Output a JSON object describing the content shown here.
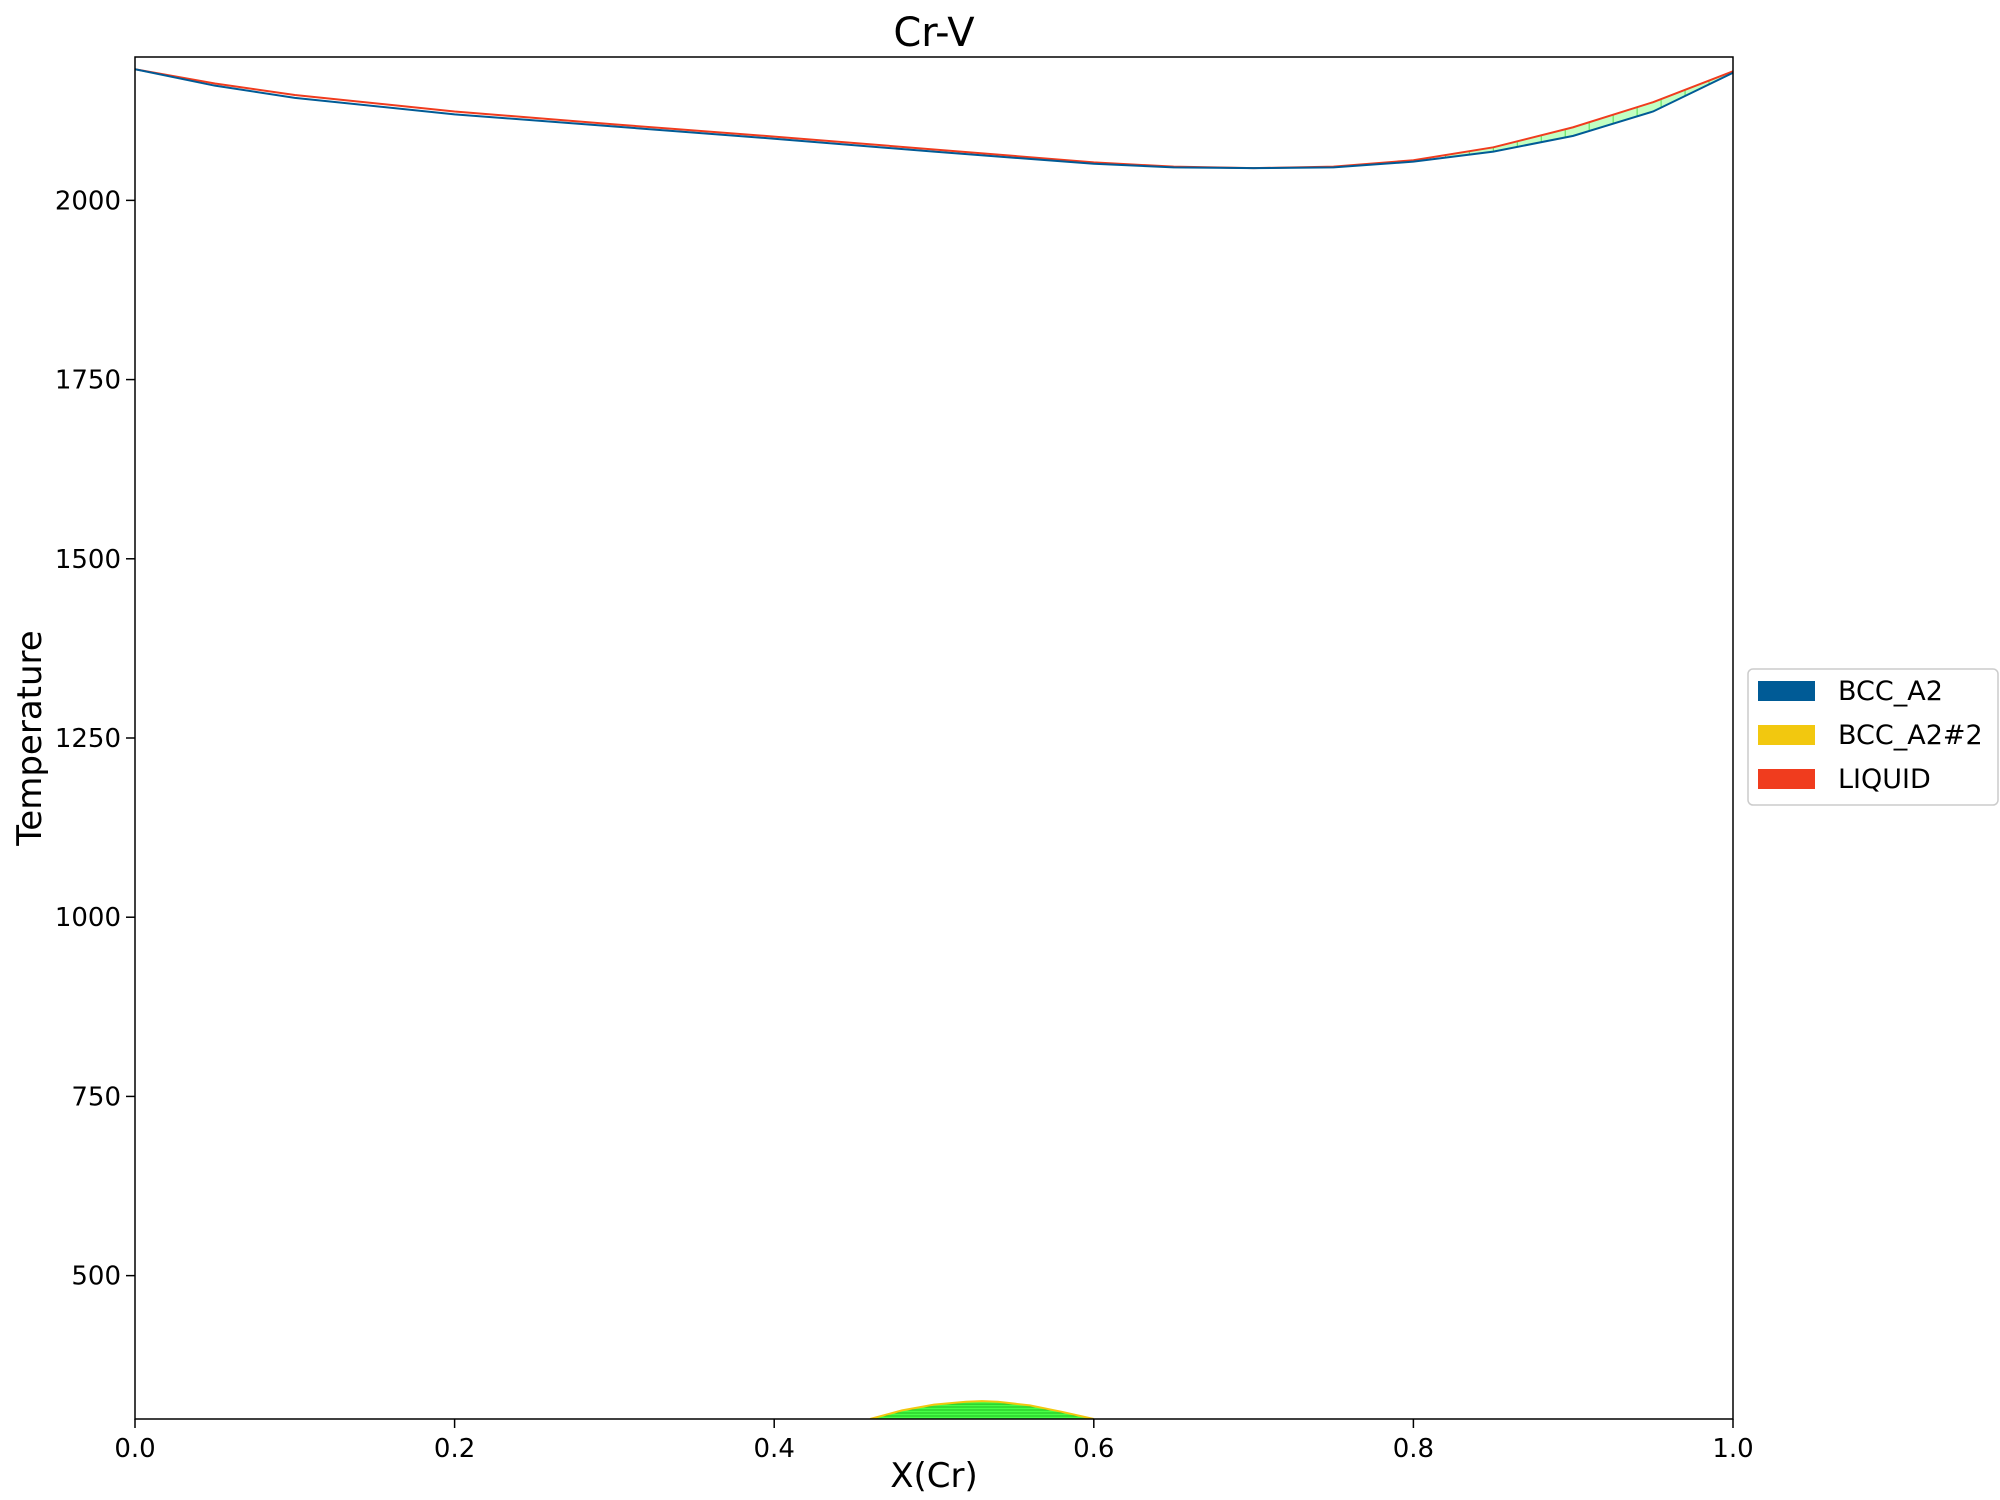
{
  "chart_data": {
    "type": "line",
    "title": "Cr-V",
    "xlabel": "X(Cr)",
    "ylabel": "Temperature",
    "xlim": [
      0.0,
      1.0
    ],
    "ylim": [
      300,
      2200
    ],
    "xticks": [
      0.0,
      0.2,
      0.4,
      0.6,
      0.8,
      1.0
    ],
    "xtick_labels": [
      "0.0",
      "0.2",
      "0.4",
      "0.6",
      "0.8",
      "1.0"
    ],
    "yticks": [
      500,
      750,
      1000,
      1250,
      1500,
      1750,
      2000
    ],
    "ytick_labels": [
      "500",
      "750",
      "1000",
      "1250",
      "1500",
      "1750",
      "2000"
    ],
    "grid": false,
    "legend_position": "right",
    "legend": [
      {
        "label": "BCC_A2",
        "color": "#005b96"
      },
      {
        "label": "BCC_A2#2",
        "color": "#f2c80f"
      },
      {
        "label": "LIQUID",
        "color": "#f03c1e"
      }
    ],
    "series": [
      {
        "name": "LIQUID",
        "color": "#f03c1e",
        "x": [
          0.0,
          0.05,
          0.1,
          0.2,
          0.3,
          0.4,
          0.5,
          0.6,
          0.65,
          0.7,
          0.75,
          0.8,
          0.85,
          0.9,
          0.95,
          1.0
        ],
        "y": [
          2183,
          2163,
          2147,
          2124,
          2106,
          2089,
          2071,
          2053,
          2047,
          2045,
          2047,
          2056,
          2074,
          2102,
          2137,
          2180
        ]
      },
      {
        "name": "BCC_A2",
        "color": "#005b96",
        "x": [
          0.0,
          0.05,
          0.1,
          0.2,
          0.3,
          0.4,
          0.5,
          0.6,
          0.65,
          0.7,
          0.75,
          0.8,
          0.85,
          0.9,
          0.95,
          1.0
        ],
        "y": [
          2183,
          2160,
          2143,
          2120,
          2103,
          2086,
          2068,
          2051,
          2046,
          2045,
          2046,
          2054,
          2068,
          2090,
          2124,
          2178
        ]
      },
      {
        "name": "BCC_A2#2",
        "color": "#f2c80f",
        "x": [
          0.46,
          0.48,
          0.5,
          0.52,
          0.53,
          0.54,
          0.56,
          0.58,
          0.6
        ],
        "y": [
          300,
          312,
          320,
          324,
          325,
          324,
          319,
          310,
          300
        ]
      }
    ],
    "tie_line_regions": [
      {
        "name": "miscibility-gap",
        "color": "#33ff33",
        "x_range": [
          0.46,
          0.6
        ],
        "y_peak": 325
      },
      {
        "name": "melting-gap",
        "color": "#99ff99",
        "x_range": [
          0.82,
          1.0
        ]
      }
    ]
  }
}
